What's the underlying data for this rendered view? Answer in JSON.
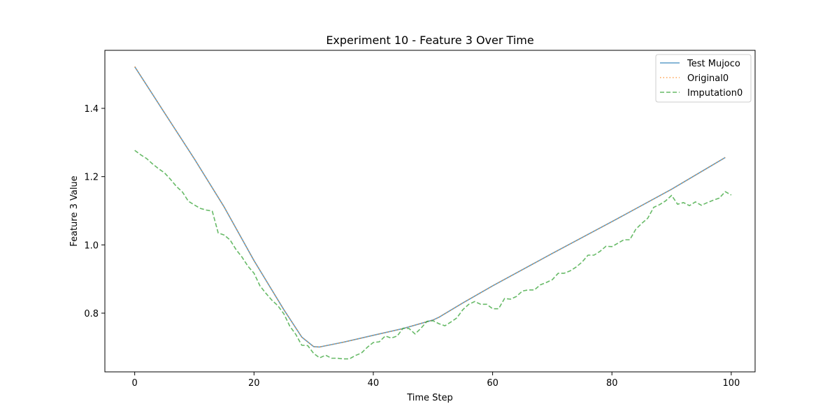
{
  "chart_data": {
    "type": "line",
    "title": "Experiment 10 - Feature 3 Over Time",
    "xlabel": "Time Step",
    "ylabel": "Feature 3 Value",
    "xlim": [
      -5,
      104
    ],
    "ylim": [
      0.628,
      1.57
    ],
    "xticks": [
      0,
      20,
      40,
      60,
      80,
      100
    ],
    "yticks": [
      0.8,
      1.0,
      1.2,
      1.4
    ],
    "ytick_labels": [
      "0.8",
      "1.0",
      "1.2",
      "1.4"
    ],
    "legend_position": "top-right",
    "grid": false,
    "series": [
      {
        "name": "Test Mujoco",
        "color": "#1f77b4",
        "style": "solid",
        "points": [
          [
            0,
            1.522
          ],
          [
            5,
            1.387
          ],
          [
            10,
            1.252
          ],
          [
            15,
            1.111
          ],
          [
            20,
            0.954
          ],
          [
            25,
            0.81
          ],
          [
            28,
            0.73
          ],
          [
            30,
            0.702
          ],
          [
            31,
            0.701
          ],
          [
            35,
            0.715
          ],
          [
            40,
            0.735
          ],
          [
            45,
            0.755
          ],
          [
            50,
            0.78
          ],
          [
            51,
            0.788
          ],
          [
            55,
            0.83
          ],
          [
            60,
            0.88
          ],
          [
            70,
            0.975
          ],
          [
            80,
            1.068
          ],
          [
            90,
            1.163
          ],
          [
            99,
            1.256
          ]
        ]
      },
      {
        "name": "Original0",
        "color": "#ff7f0e",
        "style": "dotted",
        "points": [
          [
            0,
            1.522
          ],
          [
            5,
            1.387
          ],
          [
            10,
            1.252
          ],
          [
            15,
            1.111
          ],
          [
            20,
            0.954
          ],
          [
            25,
            0.81
          ],
          [
            28,
            0.73
          ],
          [
            30,
            0.702
          ],
          [
            31,
            0.701
          ],
          [
            35,
            0.715
          ],
          [
            40,
            0.735
          ],
          [
            45,
            0.755
          ],
          [
            50,
            0.78
          ],
          [
            51,
            0.788
          ],
          [
            55,
            0.83
          ],
          [
            60,
            0.88
          ],
          [
            70,
            0.975
          ],
          [
            80,
            1.068
          ],
          [
            90,
            1.163
          ],
          [
            99,
            1.256
          ]
        ]
      },
      {
        "name": "Imputation0",
        "color": "#2ca02c",
        "style": "dashed",
        "points": [
          [
            0,
            1.277
          ],
          [
            1,
            1.264
          ],
          [
            2,
            1.253
          ],
          [
            3,
            1.237
          ],
          [
            4,
            1.223
          ],
          [
            5,
            1.211
          ],
          [
            6,
            1.192
          ],
          [
            7,
            1.171
          ],
          [
            8,
            1.155
          ],
          [
            9,
            1.128
          ],
          [
            10,
            1.117
          ],
          [
            11,
            1.107
          ],
          [
            12,
            1.102
          ],
          [
            13,
            1.099
          ],
          [
            14,
            1.035
          ],
          [
            15,
            1.029
          ],
          [
            16,
            1.014
          ],
          [
            17,
            0.986
          ],
          [
            18,
            0.964
          ],
          [
            19,
            0.937
          ],
          [
            20,
            0.917
          ],
          [
            21,
            0.88
          ],
          [
            22,
            0.858
          ],
          [
            23,
            0.838
          ],
          [
            24,
            0.822
          ],
          [
            25,
            0.798
          ],
          [
            26,
            0.762
          ],
          [
            27,
            0.738
          ],
          [
            28,
            0.706
          ],
          [
            29,
            0.705
          ],
          [
            30,
            0.682
          ],
          [
            31,
            0.669
          ],
          [
            32,
            0.677
          ],
          [
            33,
            0.668
          ],
          [
            34,
            0.668
          ],
          [
            35,
            0.666
          ],
          [
            36,
            0.666
          ],
          [
            37,
            0.676
          ],
          [
            38,
            0.683
          ],
          [
            39,
            0.7
          ],
          [
            40,
            0.714
          ],
          [
            41,
            0.716
          ],
          [
            42,
            0.733
          ],
          [
            43,
            0.727
          ],
          [
            44,
            0.733
          ],
          [
            45,
            0.756
          ],
          [
            46,
            0.755
          ],
          [
            47,
            0.739
          ],
          [
            48,
            0.756
          ],
          [
            49,
            0.776
          ],
          [
            50,
            0.778
          ],
          [
            51,
            0.769
          ],
          [
            52,
            0.763
          ],
          [
            53,
            0.774
          ],
          [
            54,
            0.786
          ],
          [
            55,
            0.81
          ],
          [
            56,
            0.826
          ],
          [
            57,
            0.834
          ],
          [
            58,
            0.826
          ],
          [
            59,
            0.826
          ],
          [
            60,
            0.813
          ],
          [
            61,
            0.813
          ],
          [
            62,
            0.843
          ],
          [
            63,
            0.841
          ],
          [
            64,
            0.849
          ],
          [
            65,
            0.865
          ],
          [
            66,
            0.868
          ],
          [
            67,
            0.868
          ],
          [
            68,
            0.883
          ],
          [
            69,
            0.89
          ],
          [
            70,
            0.898
          ],
          [
            71,
            0.917
          ],
          [
            72,
            0.917
          ],
          [
            73,
            0.924
          ],
          [
            74,
            0.935
          ],
          [
            75,
            0.95
          ],
          [
            76,
            0.97
          ],
          [
            77,
            0.97
          ],
          [
            78,
            0.981
          ],
          [
            79,
            0.996
          ],
          [
            80,
            0.995
          ],
          [
            81,
            1.005
          ],
          [
            82,
            1.015
          ],
          [
            83,
            1.015
          ],
          [
            84,
            1.046
          ],
          [
            85,
            1.063
          ],
          [
            86,
            1.078
          ],
          [
            87,
            1.11
          ],
          [
            88,
            1.118
          ],
          [
            89,
            1.129
          ],
          [
            90,
            1.145
          ],
          [
            91,
            1.119
          ],
          [
            92,
            1.124
          ],
          [
            93,
            1.115
          ],
          [
            94,
            1.126
          ],
          [
            95,
            1.116
          ],
          [
            96,
            1.124
          ],
          [
            97,
            1.131
          ],
          [
            98,
            1.137
          ],
          [
            99,
            1.156
          ],
          [
            100,
            1.146
          ]
        ]
      }
    ]
  }
}
